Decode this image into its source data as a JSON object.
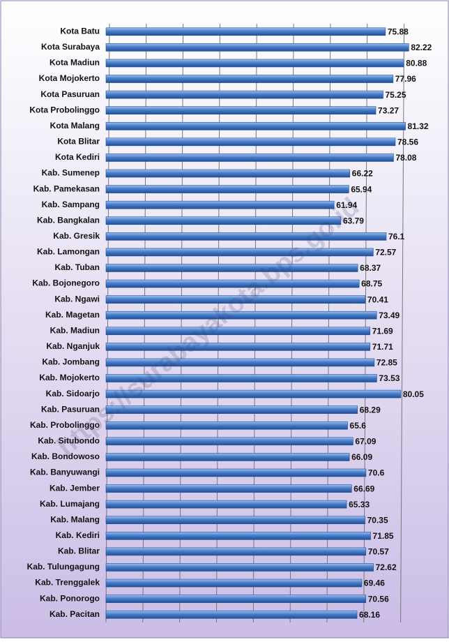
{
  "chart_data": {
    "type": "bar",
    "orientation": "horizontal",
    "categories": [
      "Kota Batu",
      "Kota Surabaya",
      "Kota Madiun",
      "Kota Mojokerto",
      "Kota Pasuruan",
      "Kota Probolinggo",
      "Kota Malang",
      "Kota Blitar",
      "Kota Kediri",
      "Kab. Sumenep",
      "Kab. Pamekasan",
      "Kab. Sampang",
      "Kab. Bangkalan",
      "Kab. Gresik",
      "Kab. Lamongan",
      "Kab. Tuban",
      "Kab. Bojonegoro",
      "Kab. Ngawi",
      "Kab. Magetan",
      "Kab. Madiun",
      "Kab. Nganjuk",
      "Kab. Jombang",
      "Kab. Mojokerto",
      "Kab. Sidoarjo",
      "Kab. Pasuruan",
      "Kab. Probolinggo",
      "Kab. Situbondo",
      "Kab. Bondowoso",
      "Kab. Banyuwangi",
      "Kab. Jember",
      "Kab. Lumajang",
      "Kab. Malang",
      "Kab. Kediri",
      "Kab. Blitar",
      "Kab. Tulungagung",
      "Kab. Trenggalek",
      "Kab. Ponorogo",
      "Kab. Pacitan"
    ],
    "values": [
      75.88,
      82.22,
      80.88,
      77.96,
      75.25,
      73.27,
      81.32,
      78.56,
      78.08,
      66.22,
      65.94,
      61.94,
      63.79,
      76.1,
      72.57,
      68.37,
      68.75,
      70.41,
      73.49,
      71.69,
      71.71,
      72.85,
      73.53,
      80.05,
      68.29,
      65.6,
      67.09,
      66.09,
      70.6,
      66.69,
      65.33,
      70.35,
      71.85,
      70.57,
      72.62,
      69.46,
      70.56,
      68.16
    ],
    "color": "#4a7ec8",
    "xlim": [
      0,
      85
    ],
    "xticks": [
      0,
      10,
      20,
      30,
      40,
      50,
      60,
      70,
      80
    ],
    "grid": true,
    "watermark": "https://surabayakota.bps.go.id"
  }
}
